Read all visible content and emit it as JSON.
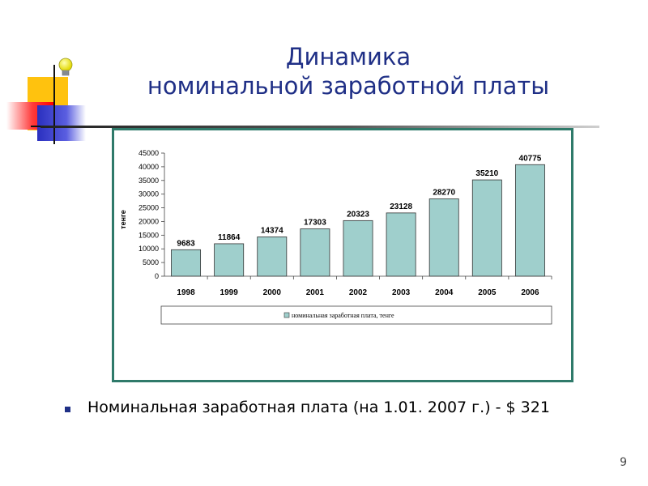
{
  "slide": {
    "title_line1": "Динамика",
    "title_line2": "номинальной заработной платы",
    "bullet": "Номинальная заработная плата (на 1.01. 2007 г.) - $ 321",
    "page_number": "9",
    "title_color": "#1f2f86",
    "frame_color": "#2f7a6a",
    "decoration_icon": "lightbulb-icon"
  },
  "chart_data": {
    "type": "bar",
    "categories": [
      "1998",
      "1999",
      "2000",
      "2001",
      "2002",
      "2003",
      "2004",
      "2005",
      "2006"
    ],
    "values": [
      9683,
      11864,
      14374,
      17303,
      20323,
      23128,
      28270,
      35210,
      40775
    ],
    "ylabel": "тенге",
    "ylim": [
      0,
      45000
    ],
    "yticks": [
      0,
      5000,
      10000,
      15000,
      20000,
      25000,
      30000,
      35000,
      40000,
      45000
    ],
    "legend": "номинальная заработная плата, тенге",
    "legend_position": "bottom",
    "grid": false,
    "bar_color": "#9fcfcc",
    "bar_border_color": "#333333"
  }
}
